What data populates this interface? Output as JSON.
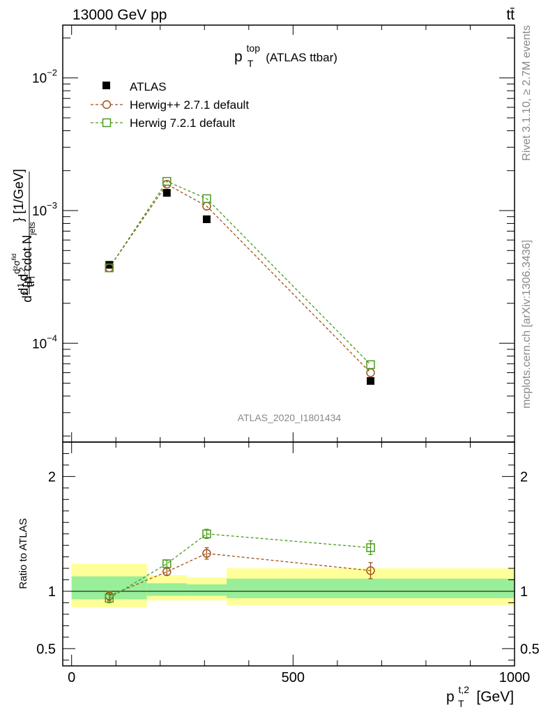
{
  "header": {
    "left_label": "13000 GeV pp",
    "right_label": "tt̄"
  },
  "side_labels": {
    "rivet": "Rivet 3.1.10, ≥ 2.7M events",
    "mcplots": "mcplots.cern.ch [arXiv:1306.3436]"
  },
  "chart_data": [
    {
      "type": "scatter",
      "title_main": "p",
      "title_sup": "top",
      "title_sub": "T",
      "title_rest": " (ATLAS ttbar)",
      "ylabel": "d ¹⁄σ d²σᶠᶦᵈ / d² {pₜᵗʲ² cdot Nⱼₑₜₛ} [1/GeV]",
      "ylabel_parts": {
        "frac1_num": "d",
        "frac1_den": "σ",
        "frac1_mid": "1",
        "frac2_num": "d²σ",
        "frac2_num_sup": "fid",
        "frac2_den": "d² {p",
        "frac2_den_sup": "t,2",
        "frac2_den_sub": "T",
        "frac2_den_rest": " cdot N",
        "frac2_den_sub2": "jets",
        "tail": "} [1/GeV]"
      },
      "y_scale": "log",
      "ylim": [
        1.8e-05,
        0.025
      ],
      "xlim": [
        -20,
        1000
      ],
      "y_ticks": [
        {
          "value": 0.01,
          "base": "10",
          "exp": "−2"
        },
        {
          "value": 0.001,
          "base": "10",
          "exp": "−3"
        },
        {
          "value": 0.0001,
          "base": "10",
          "exp": "−4"
        }
      ],
      "watermark": "ATLAS_2020_I1801434",
      "legend_position": "top-left",
      "series": [
        {
          "name": "ATLAS",
          "marker": "filled-square",
          "color": "#000000",
          "x": [
            85,
            215,
            305,
            675
          ],
          "y": [
            0.00039,
            0.00136,
            0.00086,
            5.2e-05
          ]
        },
        {
          "name": "Herwig++ 2.7.1 default",
          "marker": "open-circle",
          "color": "#a0521a",
          "line": "dashed",
          "x": [
            85,
            215,
            305,
            675
          ],
          "y": [
            0.00037,
            0.00158,
            0.00108,
            6e-05
          ]
        },
        {
          "name": "Herwig 7.2.1 default",
          "marker": "open-square",
          "color": "#4a9a1e",
          "line": "dashed",
          "x": [
            85,
            215,
            305,
            675
          ],
          "y": [
            0.00037,
            0.00166,
            0.00123,
            6.9e-05
          ]
        }
      ]
    },
    {
      "type": "scatter",
      "ylabel": "Ratio to ATLAS",
      "xlabel_main": "p",
      "xlabel_sup": "t,2",
      "xlabel_sub": "T",
      "xlabel_rest": " [GeV]",
      "ylim": [
        0.35,
        2.3
      ],
      "xlim": [
        -20,
        1000
      ],
      "y_ticks": [
        {
          "value": 2,
          "label": "2"
        },
        {
          "value": 1,
          "label": "1"
        },
        {
          "value": 0.5,
          "label": "0.5"
        }
      ],
      "x_ticks": [
        {
          "value": 0,
          "label": "0"
        },
        {
          "value": 500,
          "label": "500"
        },
        {
          "value": 1000,
          "label": "1000"
        }
      ],
      "bands": [
        {
          "x0": 0,
          "x1": 170,
          "yellow": [
            0.86,
            1.24
          ],
          "green": [
            0.93,
            1.13
          ]
        },
        {
          "x0": 170,
          "x1": 260,
          "yellow": [
            0.92,
            1.14
          ],
          "green": [
            0.96,
            1.07
          ]
        },
        {
          "x0": 260,
          "x1": 350,
          "yellow": [
            0.92,
            1.12
          ],
          "green": [
            0.96,
            1.06
          ]
        },
        {
          "x0": 350,
          "x1": 1000,
          "yellow": [
            0.88,
            1.2
          ],
          "green": [
            0.94,
            1.11
          ]
        }
      ],
      "series": [
        {
          "name": "Herwig++ 2.7.1 default",
          "marker": "open-circle",
          "color": "#a0521a",
          "x": [
            85,
            215,
            305,
            675
          ],
          "y": [
            0.96,
            1.17,
            1.33,
            1.18
          ],
          "err": [
            0.04,
            0.03,
            0.05,
            0.07
          ]
        },
        {
          "name": "Herwig 7.2.1 default",
          "marker": "open-square",
          "color": "#4a9a1e",
          "x": [
            85,
            215,
            305,
            675
          ],
          "y": [
            0.94,
            1.24,
            1.5,
            1.38
          ],
          "err": [
            0.04,
            0.03,
            0.04,
            0.06
          ]
        }
      ]
    }
  ]
}
